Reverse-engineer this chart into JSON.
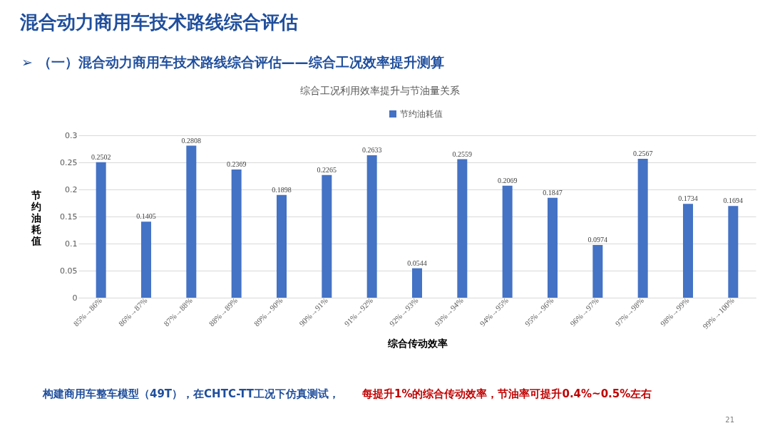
{
  "chart_data": {
    "type": "bar",
    "title": "混合动力商用车技术路线综合评估",
    "subtitle": "➢  （一）混合动力商用车技术路线综合评估——综合工况效率提升测算",
    "xlabel": "综合传动效率",
    "ylabel": "节约油耗值",
    "categories": [
      "85%→86%",
      "86%→87%",
      "87%→88%",
      "88%→89%",
      "89%→90%",
      "90%→91%",
      "91%→92%",
      "92%→93%",
      "93%→94%",
      "94%→95%",
      "95%→96%",
      "96%→97%",
      "97%→98%",
      "98%→99%",
      "99%→100%"
    ],
    "series": [
      {
        "name": "节约油耗值",
        "color": "#4472c4",
        "values": [
          0.2502,
          0.1405,
          0.2808,
          0.2369,
          0.1898,
          0.2265,
          0.2633,
          0.0544,
          0.2559,
          0.2069,
          0.1847,
          0.0974,
          0.2567,
          0.1734,
          0.1694
        ]
      }
    ],
    "ylim": [
      0,
      0.3
    ],
    "yticks": [
      0,
      0.05,
      0.1,
      0.15,
      0.2,
      0.25,
      0.3
    ],
    "grid": "y",
    "legend": "top",
    "data_labels": true,
    "annotations": [
      "综合工况利用效率提升与节油量关系",
      "构建商用车整车模型（49T），在CHTC-TT工况下仿真测试，",
      "每提升1%的综合传动效率，节油率可提升0.4%~0.5%左右",
      "21"
    ]
  }
}
